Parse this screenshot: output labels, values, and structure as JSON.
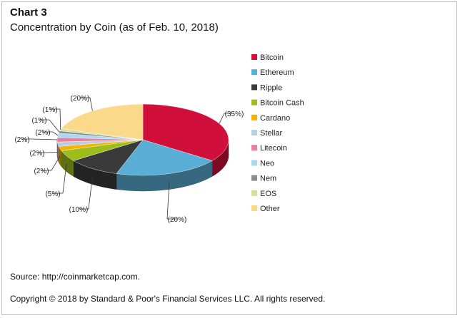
{
  "header": {
    "title": "Chart 3",
    "subtitle": "Concentration by Coin (as of Feb. 10, 2018)"
  },
  "footer": {
    "source": "Source: http://coinmarketcap.com.",
    "copyright": "Copyright © 2018 by Standard & Poor's Financial Services LLC. All rights reserved."
  },
  "chart_data": {
    "type": "pie",
    "title": "Concentration by Coin (as of Feb. 10, 2018)",
    "legend_position": "right",
    "categories": [
      "Bitcoin",
      "Ethereum",
      "Ripple",
      "Bitcoin Cash",
      "Cardano",
      "Stellar",
      "Litecoin",
      "Neo",
      "Nem",
      "EOS",
      "Other"
    ],
    "values": [
      35,
      20,
      10,
      5,
      2,
      2,
      2,
      2,
      1,
      1,
      20
    ],
    "labels": [
      "(35%)",
      "(20%)",
      "(10%)",
      "(5%)",
      "(2%)",
      "(2%)",
      "(2%)",
      "(2%)",
      "(1%)",
      "(1%)",
      "(20%)"
    ],
    "colors": [
      "#d0103a",
      "#5aaed6",
      "#3a3a3a",
      "#9cbd1a",
      "#f2b400",
      "#b9cfe0",
      "#ea7f99",
      "#a9d8f2",
      "#8c8c8c",
      "#cfe29a",
      "#fbd98a"
    ]
  }
}
